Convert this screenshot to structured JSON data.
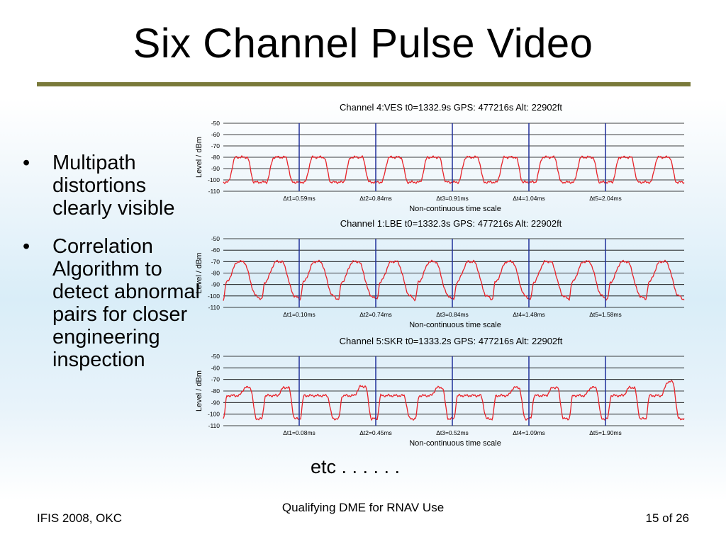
{
  "slide": {
    "title": "Six Channel Pulse Video",
    "bullets": [
      "Multipath distortions clearly visible",
      "Correlation Algorithm to detect abnormal pairs for closer engineering inspection"
    ],
    "etc_label": "etc . . . . . .",
    "footer_left": "IFIS 2008, OKC",
    "footer_center": "Qualifying DME for RNAV Use",
    "footer_right": "15 of 26"
  },
  "colors": {
    "trace": "#e8232a",
    "divider": "#1f2f9a",
    "grid": "#000000",
    "rule": "#7a7a3a"
  },
  "chart_data": [
    {
      "type": "line",
      "title": "Channel 4:VES  t0=1332.9s  GPS: 477216s  Alt: 22902ft",
      "ylabel": "Level / dBm",
      "xlabel": "Non-continuous time scale",
      "ylim": [
        -110,
        -50
      ],
      "yticks": [
        -50,
        -60,
        -70,
        -80,
        -90,
        -100,
        -110
      ],
      "grid": true,
      "segment_labels": [
        "Δt1=0.59ms",
        "Δt2=0.84ms",
        "Δt3=0.91ms",
        "Δt4=1.04ms",
        "Δt5=2.04ms"
      ],
      "pulse_peaks": [
        -80,
        -80,
        -80,
        -80,
        -80,
        -80,
        -80,
        -80,
        -80,
        -80,
        -80,
        -80
      ],
      "baseline": -102,
      "shape": "flat"
    },
    {
      "type": "line",
      "title": "Channel 1:LBE  t0=1332.3s  GPS: 477216s  Alt: 22902ft",
      "ylabel": "Level / dBm",
      "xlabel": "Non-continuous time scale",
      "ylim": [
        -110,
        -50
      ],
      "yticks": [
        -50,
        -60,
        -70,
        -80,
        -90,
        -100,
        -110
      ],
      "grid": true,
      "segment_labels": [
        "Δt1=0.10ms",
        "Δt2=0.74ms",
        "Δt3=0.84ms",
        "Δt4=1.48ms",
        "Δt5=1.58ms"
      ],
      "pulse_peaks": [
        -70,
        -70,
        -70,
        -70,
        -70,
        -70,
        -70,
        -70,
        -70,
        -70,
        -70,
        -70
      ],
      "baseline": -103,
      "shape": "round"
    },
    {
      "type": "line",
      "title": "Channel 5:SKR  t0=1333.2s  GPS: 477216s  Alt: 22902ft",
      "ylabel": "Level / dBm",
      "xlabel": "Non-continuous time scale",
      "ylim": [
        -110,
        -50
      ],
      "yticks": [
        -50,
        -60,
        -70,
        -80,
        -90,
        -100,
        -110
      ],
      "grid": true,
      "segment_labels": [
        "Δt1=0.08ms",
        "Δt2=0.45ms",
        "Δt3=0.52ms",
        "Δt4=1.09ms",
        "Δt5=1.90ms"
      ],
      "pulse_peaks": [
        -77,
        -77,
        -84,
        -76,
        -84,
        -77,
        -84,
        -77,
        -77,
        -77,
        -77,
        -72
      ],
      "baseline": -104,
      "shape": "stepped"
    }
  ]
}
